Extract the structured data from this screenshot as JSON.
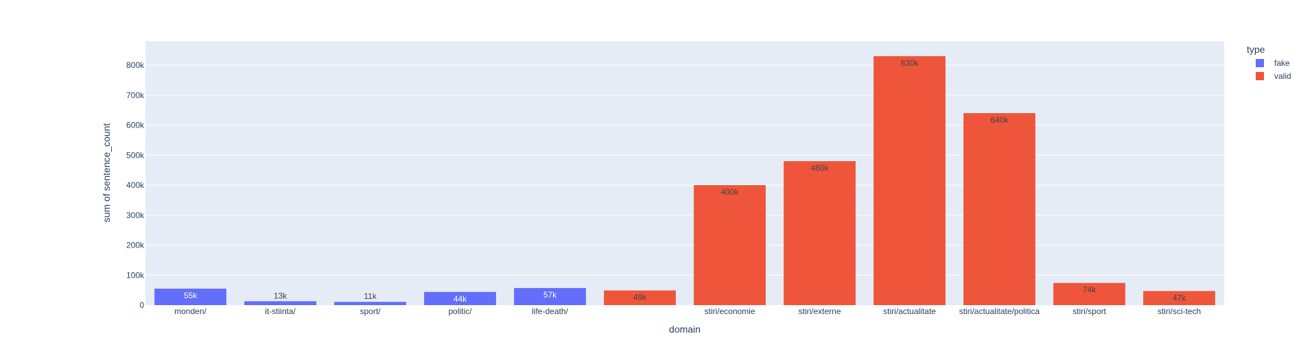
{
  "chart_data": {
    "type": "bar",
    "xlabel": "domain",
    "ylabel": "sum of sentence_count",
    "ylim": [
      0,
      880000
    ],
    "yticks": [
      0,
      100000,
      200000,
      300000,
      400000,
      500000,
      600000,
      700000,
      800000
    ],
    "ytick_labels": [
      "0",
      "100k",
      "200k",
      "300k",
      "400k",
      "500k",
      "600k",
      "700k",
      "800k"
    ],
    "grid": true,
    "legend": {
      "title": "type",
      "position": "top-right"
    },
    "colors": {
      "fake": "#636efa",
      "valid": "#ef553b",
      "plot_bg": "#e5ecf6",
      "grid": "#ffffff"
    },
    "bars": [
      {
        "category": "monden/",
        "type": "fake",
        "value": 55000,
        "label": "55k"
      },
      {
        "category": "it-stiinta/",
        "type": "fake",
        "value": 13000,
        "label": "13k"
      },
      {
        "category": "sport/",
        "type": "fake",
        "value": 11000,
        "label": "11k"
      },
      {
        "category": "politic/",
        "type": "fake",
        "value": 44000,
        "label": "44k"
      },
      {
        "category": "life-death/",
        "type": "fake",
        "value": 57000,
        "label": "57k"
      },
      {
        "category": "",
        "type": "valid",
        "value": 49000,
        "label": "49k"
      },
      {
        "category": "stiri/economie",
        "type": "valid",
        "value": 400000,
        "label": "400k"
      },
      {
        "category": "stiri/externe",
        "type": "valid",
        "value": 480000,
        "label": "480k"
      },
      {
        "category": "stiri/actualitate",
        "type": "valid",
        "value": 830000,
        "label": "830k"
      },
      {
        "category": "stiri/actualitate/politica",
        "type": "valid",
        "value": 640000,
        "label": "640k"
      },
      {
        "category": "stiri/sport",
        "type": "valid",
        "value": 74000,
        "label": "74k"
      },
      {
        "category": "stiri/sci-tech",
        "type": "valid",
        "value": 47000,
        "label": "47k"
      }
    ],
    "series": [
      {
        "name": "fake"
      },
      {
        "name": "valid"
      }
    ]
  }
}
